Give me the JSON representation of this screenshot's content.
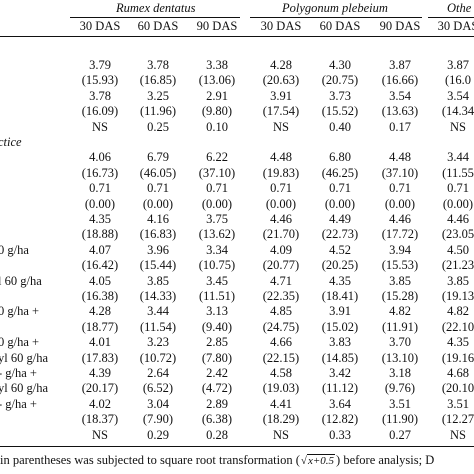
{
  "header": {
    "groups": [
      {
        "name": "Rumex dentatus"
      },
      {
        "name": "Polygonum plebeium"
      },
      {
        "name": "Othe"
      }
    ],
    "das": [
      "30 DAS",
      "60 DAS",
      "90 DAS",
      "30 DAS",
      "60 DAS",
      "90 DAS",
      "30 DAS"
    ]
  },
  "rows": [
    {
      "label": "",
      "cells": [
        "3.79",
        "3.78",
        "3.38",
        "4.28",
        "4.30",
        "3.87",
        "3.87"
      ]
    },
    {
      "label": "",
      "cells": [
        "(15.93)",
        "(16.85)",
        "(13.06)",
        "(20.63)",
        "(20.75)",
        "(16.66)",
        "(16.0"
      ]
    },
    {
      "label": "",
      "cells": [
        "3.78",
        "3.25",
        "2.91",
        "3.91",
        "3.73",
        "3.54",
        "3.54"
      ]
    },
    {
      "label": "",
      "cells": [
        "(16.09)",
        "(11.96)",
        "(9.80)",
        "(17.54)",
        "(15.52)",
        "(13.63)",
        "(14.34"
      ]
    },
    {
      "label": "",
      "cells": [
        "NS",
        "0.25",
        "0.10",
        "NS",
        "0.40",
        "0.17",
        "NS"
      ]
    },
    {
      "label": "ctice",
      "italic": true,
      "cells": [
        "",
        "",
        "",
        "",
        "",
        "",
        ""
      ]
    },
    {
      "label": "",
      "cells": [
        "4.06",
        "6.79",
        "6.22",
        "4.48",
        "6.80",
        "4.48",
        "3.44"
      ]
    },
    {
      "label": "",
      "cells": [
        "(16.73)",
        "(46.05)",
        "(37.10)",
        "(19.83)",
        "(46.25)",
        "(37.10)",
        "(11.55"
      ]
    },
    {
      "label": "",
      "cells": [
        "0.71",
        "0.71",
        "0.71",
        "0.71",
        "0.71",
        "0.71",
        "0.71"
      ]
    },
    {
      "label": "",
      "cells": [
        "(0.00)",
        "(0.00)",
        "(0.00)",
        "(0.00)",
        "(0.00)",
        "(0.00)",
        "(0.00)"
      ]
    },
    {
      "label": "",
      "cells": [
        "4.35",
        "4.16",
        "3.75",
        "4.46",
        "4.49",
        "4.46",
        "4.46"
      ]
    },
    {
      "label": "",
      "cells": [
        "(18.88)",
        "(16.83)",
        "(13.62)",
        "(21.70)",
        "(22.73)",
        "(17.72)",
        "(23.05"
      ]
    },
    {
      "label": "0 g/ha",
      "cells": [
        "4.07",
        "3.96",
        "3.34",
        "4.09",
        "4.52",
        "3.94",
        "4.50"
      ]
    },
    {
      "label": "",
      "cells": [
        "(16.42)",
        "(15.44)",
        "(10.75)",
        "(20.77)",
        "(20.25)",
        "(15.53)",
        "(21.23"
      ]
    },
    {
      "label": "l 60 g/ha",
      "cells": [
        "4.05",
        "3.85",
        "3.45",
        "4.71",
        "4.35",
        "3.85",
        "3.85"
      ]
    },
    {
      "label": "",
      "cells": [
        "(16.38)",
        "(14.33)",
        "(11.51)",
        "(22.35)",
        "(18.41)",
        "(15.28)",
        "(19.13"
      ]
    },
    {
      "label": "0 g/ha +",
      "cells": [
        "4.28",
        "3.44",
        "3.13",
        "4.85",
        "3.91",
        "4.82",
        "4.82"
      ]
    },
    {
      "label": "",
      "cells": [
        "(18.77)",
        "(11.54)",
        "(9.40)",
        "(24.75)",
        "(15.02)",
        "(11.91)",
        "(22.10"
      ]
    },
    {
      "label": "0 g/ha +",
      "cells": [
        "4.01",
        "3.23",
        "2.85",
        "4.66",
        "3.83",
        "3.70",
        "4.35"
      ]
    },
    {
      "label": "yl 60 g/ha",
      "cells": [
        "(17.83)",
        "(10.72)",
        "(7.80)",
        "(22.15)",
        "(14.85)",
        "(13.10)",
        "(19.16"
      ]
    },
    {
      "label": "- g/ha +",
      "cells": [
        "4.39",
        "2.64",
        "2.42",
        "4.58",
        "3.42",
        "3.18",
        "4.68"
      ]
    },
    {
      "label": "yl 60 g/ha",
      "cells": [
        "(20.17)",
        "(6.52)",
        "(4.72)",
        "(19.03)",
        "(11.12)",
        "(9.76)",
        "(20.10"
      ]
    },
    {
      "label": "- g/ha +",
      "cells": [
        "4.02",
        "3.04",
        "2.89",
        "4.41",
        "3.64",
        "3.51",
        "3.51"
      ]
    },
    {
      "label": "",
      "cells": [
        "(18.37)",
        "(7.90)",
        "(6.38)",
        "(18.29)",
        "(12.82)",
        "(11.90)",
        "(12.27"
      ]
    },
    {
      "label": "",
      "cells": [
        "NS",
        "0.29",
        "0.28",
        "NS",
        "0.33",
        "0.27",
        "NS"
      ]
    }
  ],
  "footnote": {
    "before": "in parentheses was subjected to square root transformation (",
    "sqrt": "x+0.5",
    "after": ") before analysis; D"
  }
}
